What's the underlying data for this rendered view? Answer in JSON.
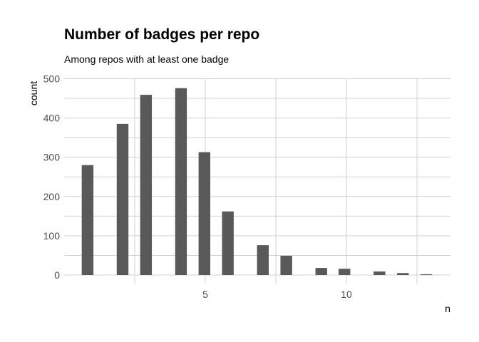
{
  "chart_data": {
    "type": "bar",
    "subtype": "histogram",
    "title": "Number of badges per repo",
    "subtitle": "Among repos with at least one badge",
    "xlabel": "n",
    "ylabel": "count",
    "binwidth": 0.414,
    "x": [
      0.83,
      2.07,
      2.9,
      4.14,
      4.97,
      5.8,
      7.04,
      7.87,
      9.11,
      9.93,
      11.17,
      12.0,
      12.83
    ],
    "values": [
      280,
      385,
      459,
      476,
      313,
      162,
      76,
      49,
      18,
      16,
      9,
      5,
      2
    ],
    "xlim": [
      0,
      13.7
    ],
    "ylim": [
      -22,
      500
    ],
    "xticks": [
      5,
      10
    ],
    "yticks": [
      0,
      100,
      200,
      300,
      400,
      500
    ],
    "grid": true,
    "bar_color": "#595959",
    "grid_color": "#d0d0d0"
  }
}
